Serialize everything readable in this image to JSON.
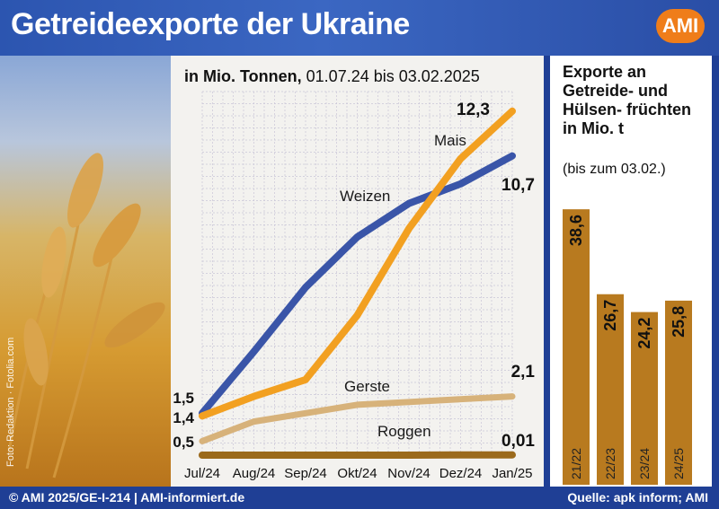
{
  "header": {
    "title": "Getreideexporte der Ukraine",
    "logo_text": "AMI"
  },
  "photo_credit": "Foto: Redaktion · Fotolia.com",
  "footer": {
    "left": "© AMI 2025/GE-I-214 | AMI-informiert.de",
    "right": "Quelle: apk inform; AMI"
  },
  "colors": {
    "weizen": "#3a55a8",
    "mais": "#f2a021",
    "gerste": "#d7b27a",
    "roggen": "#9b6a1c",
    "bar": "#b87a1f",
    "grid": "#c9c6d7",
    "background": "#f3f2ef"
  },
  "chart_data": [
    {
      "type": "line",
      "title": "in Mio. Tonnen,",
      "subtitle": "01.07.24 bis 03.02.2025",
      "categories": [
        "Jul/24",
        "Aug/24",
        "Sep/24",
        "Okt/24",
        "Nov/24",
        "Dez/24",
        "Jan/25"
      ],
      "ylim": [
        0,
        13
      ],
      "grid": true,
      "series": [
        {
          "name": "Weizen",
          "values": [
            1.5,
            3.7,
            6.0,
            7.8,
            9.0,
            9.7,
            10.7
          ],
          "start_label": "1,5",
          "end_label": "10,7"
        },
        {
          "name": "Mais",
          "values": [
            1.4,
            2.1,
            2.7,
            5.0,
            8.1,
            10.6,
            12.3
          ],
          "start_label": "1,4",
          "end_label": "12,3"
        },
        {
          "name": "Gerste",
          "values": [
            0.5,
            1.2,
            1.5,
            1.8,
            1.9,
            2.0,
            2.1
          ],
          "start_label": "0,5",
          "end_label": "2,1"
        },
        {
          "name": "Roggen",
          "values": [
            0.0,
            0.0,
            0.0,
            0.0,
            0.0,
            0.01,
            0.01
          ],
          "start_label": "",
          "end_label": "0,01"
        }
      ]
    },
    {
      "type": "bar",
      "title": "Exporte an Getreide- und Hülsen- früchten in Mio. t",
      "subtitle": "(bis zum 03.02.)",
      "categories": [
        "21/22",
        "22/23",
        "23/24",
        "24/25"
      ],
      "values": [
        38.6,
        26.7,
        24.2,
        25.8
      ],
      "value_labels": [
        "38,6",
        "26,7",
        "24,2",
        "25,8"
      ],
      "ylim": [
        0,
        40
      ]
    }
  ]
}
